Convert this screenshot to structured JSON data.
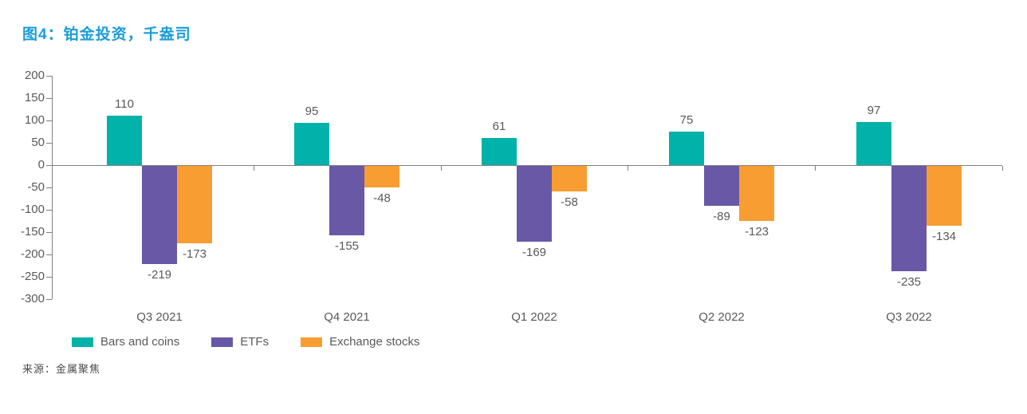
{
  "page": {
    "title": "图4：铂金投资，千盎司",
    "source": "来源：金属聚焦"
  },
  "chart_data": {
    "type": "bar",
    "title": "图4：铂金投资，千盎司",
    "categories": [
      "Q3 2021",
      "Q4 2021",
      "Q1 2022",
      "Q2 2022",
      "Q3 2022"
    ],
    "series": [
      {
        "name": "Bars and coins",
        "color": "#00B2A9",
        "values": [
          110,
          95,
          61,
          75,
          97
        ]
      },
      {
        "name": "ETFs",
        "color": "#6858A6",
        "values": [
          -219,
          -155,
          -169,
          -89,
          -235
        ]
      },
      {
        "name": "Exchange stocks",
        "color": "#F89D31",
        "values": [
          -173,
          -48,
          -58,
          -123,
          -134
        ]
      }
    ],
    "yticks": [
      200,
      150,
      100,
      50,
      0,
      -50,
      -100,
      -150,
      -200,
      -250,
      -300
    ],
    "ylim": [
      -300,
      200
    ],
    "grid": false,
    "legend_position": "bottom",
    "value_labels": true,
    "axis_color": "#808080",
    "text_color": "#595959",
    "title_color": "#1B9DD8"
  }
}
